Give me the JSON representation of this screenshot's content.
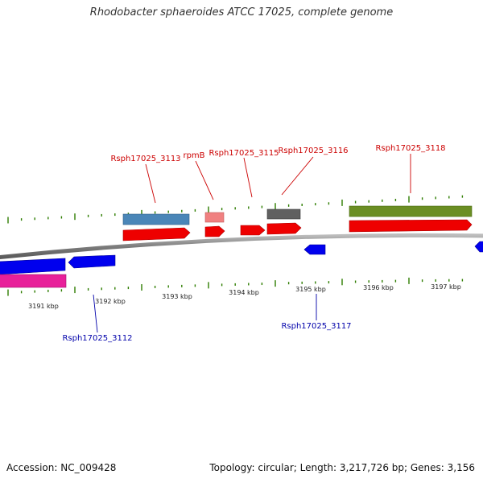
{
  "title": "Rhodobacter sphaeroides ATCC 17025, complete genome",
  "footer": {
    "accession": "Accession: NC_009428",
    "summary": "Topology: circular; Length: 3,217,726 bp; Genes: 3,156"
  },
  "colors": {
    "backbone": "#8a8a8a",
    "forward_label": "#cc0000",
    "reverse_label": "#0000aa",
    "minor_tick": "#2e7d00"
  },
  "scale": {
    "kbp_ticks": [
      "3191 kbp",
      "3192 kbp",
      "3193 kbp",
      "3194 kbp",
      "3195 kbp",
      "3196 kbp",
      "3197 kbp"
    ]
  },
  "gene_labels": {
    "forward": [
      "Rsph17025_3113",
      "rpmB",
      "Rsph17025_3115",
      "Rsph17025_3116",
      "Rsph17025_3118"
    ],
    "reverse": [
      "Rsph17025_3112",
      "Rsph17025_3117"
    ]
  },
  "features": {
    "forward_genes": [
      {
        "id": "g3113",
        "color": "#ee0000"
      },
      {
        "id": "grpmB",
        "color": "#ee0000"
      },
      {
        "id": "g3115",
        "color": "#ee0000"
      },
      {
        "id": "g3116",
        "color": "#ee0000"
      },
      {
        "id": "g3118",
        "color": "#ee0000"
      }
    ],
    "forward_cds": [
      {
        "id": "c3113",
        "color": "#4a86b8"
      },
      {
        "id": "crpmB",
        "color": "#f08080"
      },
      {
        "id": "c3116",
        "color": "#606060"
      },
      {
        "id": "c3118",
        "color": "#6b8e23"
      }
    ],
    "reverse_genes": [
      {
        "id": "g3111",
        "color": "#0000ee"
      },
      {
        "id": "g3112",
        "color": "#0000ee"
      },
      {
        "id": "g3117",
        "color": "#0000ee"
      },
      {
        "id": "g3119",
        "color": "#0000ee"
      }
    ],
    "reverse_cds": [
      {
        "id": "c3111",
        "color": "#e8209a"
      }
    ]
  }
}
